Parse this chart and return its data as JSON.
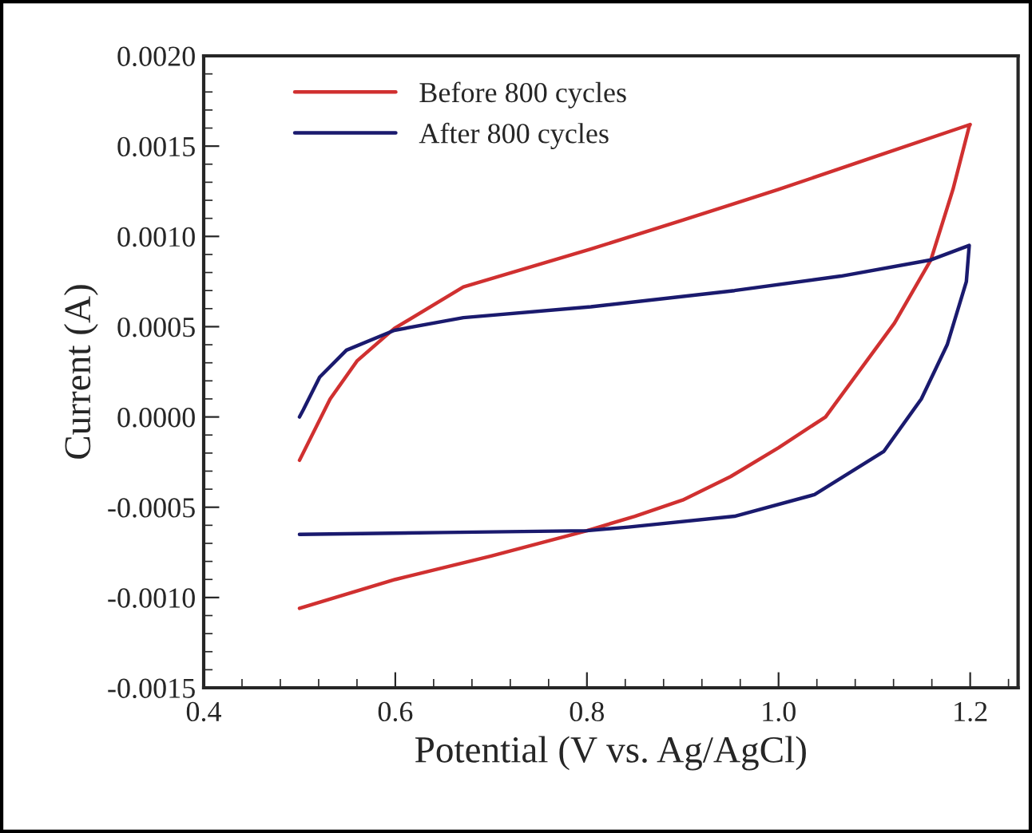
{
  "chart_data": {
    "type": "line",
    "xlabel": "Potential (V vs. Ag/AgCl)",
    "ylabel": "Current (A)",
    "xlim": [
      0.4,
      1.25
    ],
    "xticks": [
      {
        "value": 0.4,
        "label": "0.4"
      },
      {
        "value": 0.6,
        "label": "0.6"
      },
      {
        "value": 0.8,
        "label": "0.8"
      },
      {
        "value": 1.0,
        "label": "1.0"
      },
      {
        "value": 1.2,
        "label": "1.2"
      }
    ],
    "ylim": [
      -0.0015,
      0.002
    ],
    "yticks": [
      {
        "value": -0.0015,
        "label": "-0.0015"
      },
      {
        "value": -0.001,
        "label": "-0.0010"
      },
      {
        "value": -0.0005,
        "label": "-0.0005"
      },
      {
        "value": 0,
        "label": "0.0000"
      },
      {
        "value": 0.0005,
        "label": "0.0005"
      },
      {
        "value": 0.001,
        "label": "0.0010"
      },
      {
        "value": 0.0015,
        "label": "0.0015"
      },
      {
        "value": 0.002,
        "label": "0.0020"
      }
    ],
    "grid": false,
    "legend": "top left",
    "marker": "none",
    "line_style": "solid",
    "series": [
      {
        "name": "Before 800 cycles",
        "color": "#d03030",
        "x": [
          0.5,
          0.532,
          0.56,
          0.599,
          0.671,
          0.804,
          0.9,
          1.0,
          1.1,
          1.2,
          1.199,
          1.182,
          1.159,
          1.121,
          1.049,
          1.0,
          0.95,
          0.9,
          0.85,
          0.8,
          0.7,
          0.6,
          0.5
        ],
        "values": [
          -0.00024,
          0.0001,
          0.00031,
          0.00049,
          0.00072,
          0.00093,
          0.00109,
          0.00126,
          0.00144,
          0.00162,
          0.00161,
          0.00126,
          0.00087,
          0.00052,
          0.0,
          -0.00017,
          -0.00033,
          -0.00046,
          -0.00055,
          -0.00063,
          -0.00077,
          -0.0009,
          -0.00106
        ]
      },
      {
        "name": "After 800 cycles",
        "color": "#1a1a6e",
        "x": [
          0.5,
          0.504,
          0.521,
          0.549,
          0.599,
          0.671,
          0.804,
          0.954,
          1.065,
          1.159,
          1.199,
          1.196,
          1.176,
          1.149,
          1.11,
          1.0375,
          0.954,
          0.843,
          0.8,
          0.65,
          0.5
        ],
        "values": [
          0.0,
          4e-05,
          0.00022,
          0.00037,
          0.00048,
          0.00055,
          0.00061,
          0.0007,
          0.00078,
          0.00087,
          0.00095,
          0.00075,
          0.0004,
          0.0001,
          -0.00019,
          -0.00043,
          -0.00055,
          -0.00061,
          -0.00063,
          -0.00064,
          -0.00065
        ]
      }
    ]
  }
}
